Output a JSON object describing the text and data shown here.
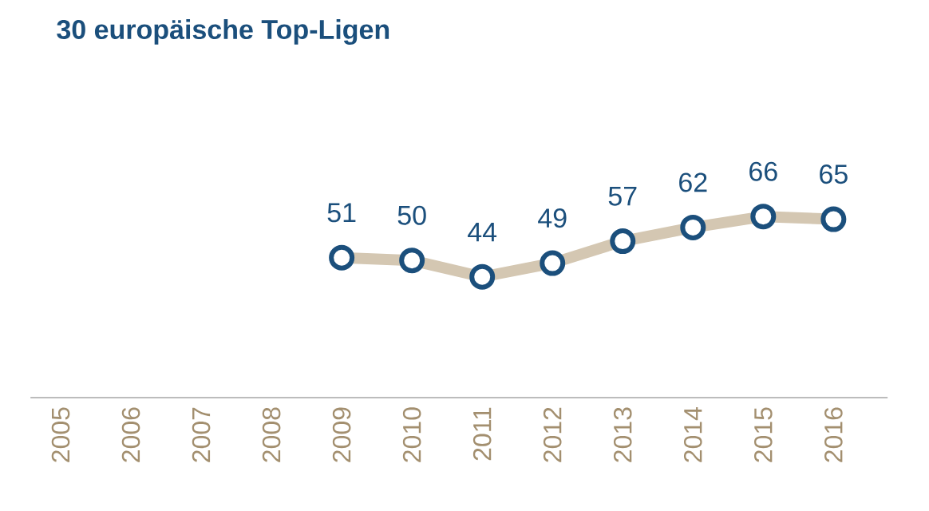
{
  "chart_data": {
    "type": "line",
    "title": "30 europäische Top-Ligen",
    "categories": [
      "2005",
      "2006",
      "2007",
      "2008",
      "2009",
      "2010",
      "2011",
      "2012",
      "2013",
      "2014",
      "2015",
      "2016"
    ],
    "series": [
      {
        "color": "#d4c7b2",
        "values": [
          null,
          null,
          null,
          null,
          51,
          50,
          44,
          49,
          57,
          62,
          66,
          65
        ]
      }
    ],
    "tick_labels": "x",
    "data_labels": true,
    "marker": "circle",
    "line_style": "solid",
    "grid": false
  }
}
